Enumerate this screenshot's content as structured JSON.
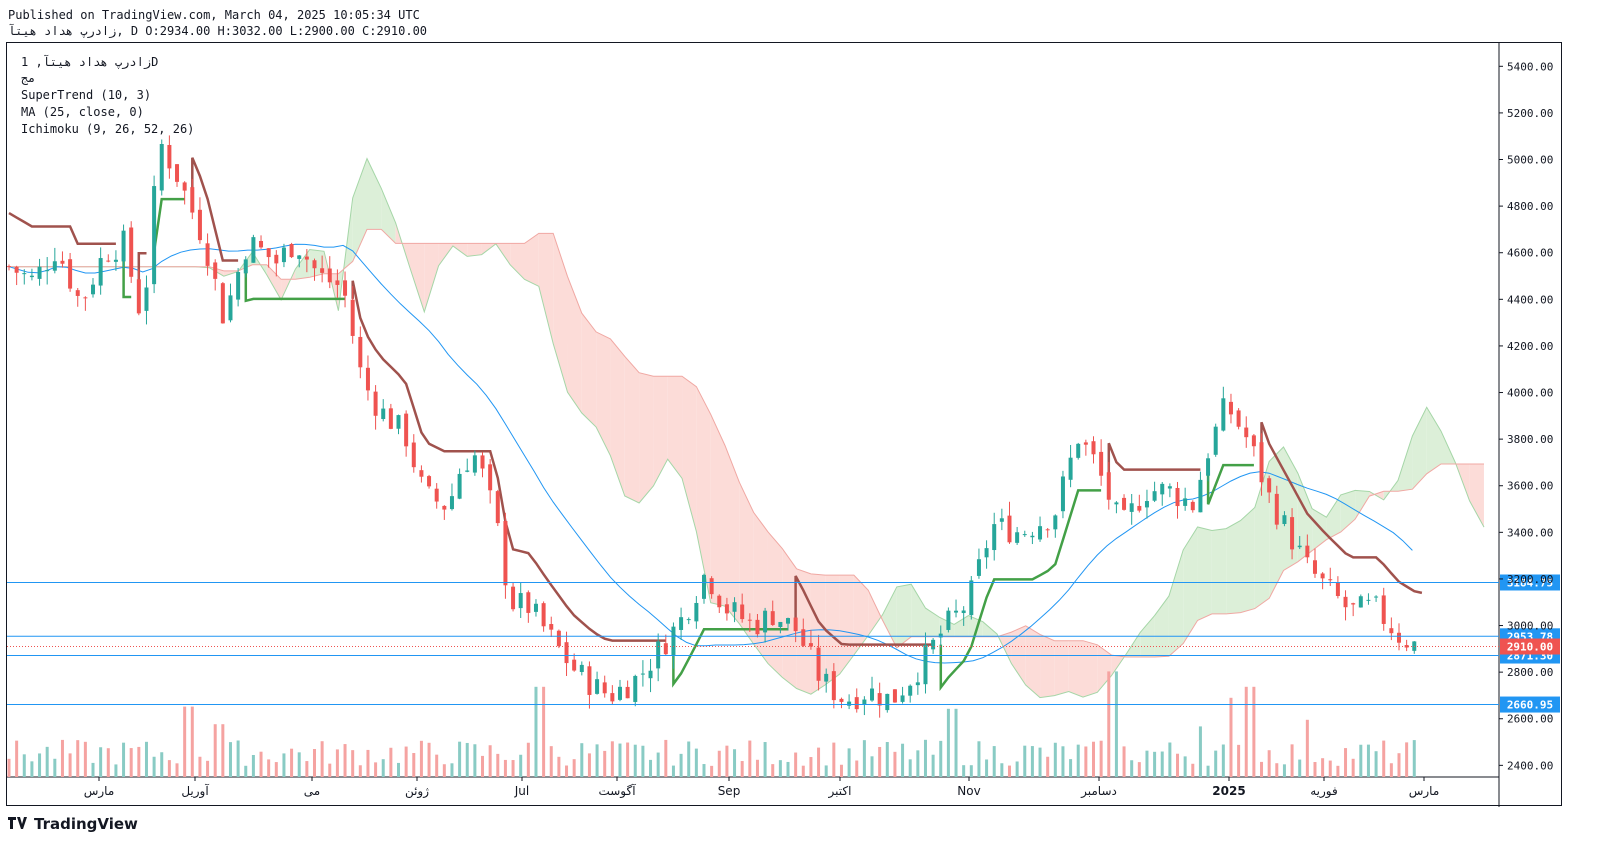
{
  "header": {
    "published": "Published on TradingView.com, March 04, 2025 10:05:34 UTC",
    "ohlc_line": "زادرپ هداد هیتآ, D O:2934.00 H:3032.00 L:2900.00 C:2910.00"
  },
  "legend": {
    "symbol": "زادرپ هداد هیتآ, 1D",
    "exchange": "مج",
    "indicators": [
      "SuperTrend (10, 3)",
      "MA (25, close, 0)",
      "Ichimoku (9, 26, 52, 26)"
    ]
  },
  "footer": {
    "brand": "TradingView"
  },
  "colors": {
    "up": "#26a69a",
    "down": "#ef5350",
    "st_up": "#43a047",
    "st_down": "#a0524d",
    "ma": "#2196f3",
    "cloud_red": "#fcdcd8",
    "cloud_green": "#dcefd8",
    "hline": "#2196f3",
    "last_price": "#ef5350"
  },
  "chart_data": {
    "type": "candlestick",
    "y_axis": {
      "range": [
        2350,
        5500
      ],
      "ticks": [
        "5400.00",
        "5200.00",
        "5000.00",
        "4800.00",
        "4600.00",
        "4400.00",
        "4200.00",
        "4000.00",
        "3800.00",
        "3600.00",
        "3400.00",
        "3200.00",
        "3000.00",
        "2800.00",
        "2600.00",
        "2400.00"
      ]
    },
    "x_axis": {
      "labels": [
        "مارس",
        "آوریل",
        "می",
        "ژوئن",
        "Jul",
        "آگوست",
        "Sep",
        "اکتبر",
        "Nov",
        "دسامبر",
        "2025",
        "فوریه",
        "مارس"
      ]
    },
    "price_lines": [
      {
        "label": "3184.75",
        "value": 3184.75
      },
      {
        "label": "2953.78",
        "value": 2953.78
      },
      {
        "label": "2871.30",
        "value": 2871.3
      },
      {
        "label": "2660.95",
        "value": 2660.95
      }
    ],
    "last_price": {
      "label": "2910.00",
      "value": 2910
    },
    "close_path": [
      [
        0,
        4540
      ],
      [
        10,
        4480
      ],
      [
        20,
        4620
      ],
      [
        30,
        4380
      ],
      [
        40,
        4600
      ],
      [
        48,
        4640
      ],
      [
        56,
        4300
      ],
      [
        63,
        5080
      ],
      [
        71,
        4920
      ],
      [
        82,
        4650
      ],
      [
        90,
        4320
      ],
      [
        100,
        4650
      ],
      [
        112,
        4560
      ],
      [
        120,
        4650
      ],
      [
        130,
        4500
      ],
      [
        140,
        4450
      ],
      [
        148,
        4050
      ],
      [
        155,
        3930
      ],
      [
        166,
        3820
      ],
      [
        174,
        3560
      ],
      [
        184,
        3510
      ],
      [
        190,
        3700
      ],
      [
        196,
        3730
      ],
      [
        204,
        3450
      ],
      [
        210,
        3100
      ],
      [
        218,
        3080
      ],
      [
        226,
        2960
      ],
      [
        236,
        2820
      ],
      [
        245,
        2740
      ],
      [
        252,
        2700
      ],
      [
        264,
        2780
      ],
      [
        272,
        2890
      ],
      [
        282,
        3030
      ],
      [
        292,
        3230
      ],
      [
        300,
        3080
      ],
      [
        312,
        3000
      ],
      [
        320,
        3050
      ],
      [
        330,
        2980
      ],
      [
        340,
        2770
      ],
      [
        350,
        2680
      ],
      [
        360,
        2720
      ],
      [
        370,
        2680
      ],
      [
        380,
        2800
      ],
      [
        392,
        2990
      ],
      [
        402,
        3100
      ],
      [
        412,
        3430
      ],
      [
        424,
        3400
      ],
      [
        438,
        3480
      ],
      [
        448,
        3810
      ],
      [
        455,
        3700
      ],
      [
        466,
        3420
      ],
      [
        476,
        3580
      ],
      [
        486,
        3580
      ],
      [
        496,
        3520
      ],
      [
        502,
        3740
      ],
      [
        510,
        3950
      ],
      [
        520,
        3780
      ],
      [
        528,
        3550
      ],
      [
        536,
        3400
      ],
      [
        544,
        3250
      ],
      [
        552,
        3160
      ],
      [
        562,
        3060
      ],
      [
        572,
        3080
      ],
      [
        582,
        2960
      ],
      [
        590,
        2910
      ]
    ],
    "volume_peaks": [
      {
        "i": 75,
        "v": 3.2
      },
      {
        "i": 88,
        "v": 2.4
      },
      {
        "i": 222,
        "v": 4.1
      },
      {
        "i": 395,
        "v": 3.1
      },
      {
        "i": 462,
        "v": 4.8
      },
      {
        "i": 500,
        "v": 2.3
      },
      {
        "i": 512,
        "v": 3.6
      },
      {
        "i": 520,
        "v": 4.1
      },
      {
        "i": 545,
        "v": 2.6
      }
    ]
  }
}
